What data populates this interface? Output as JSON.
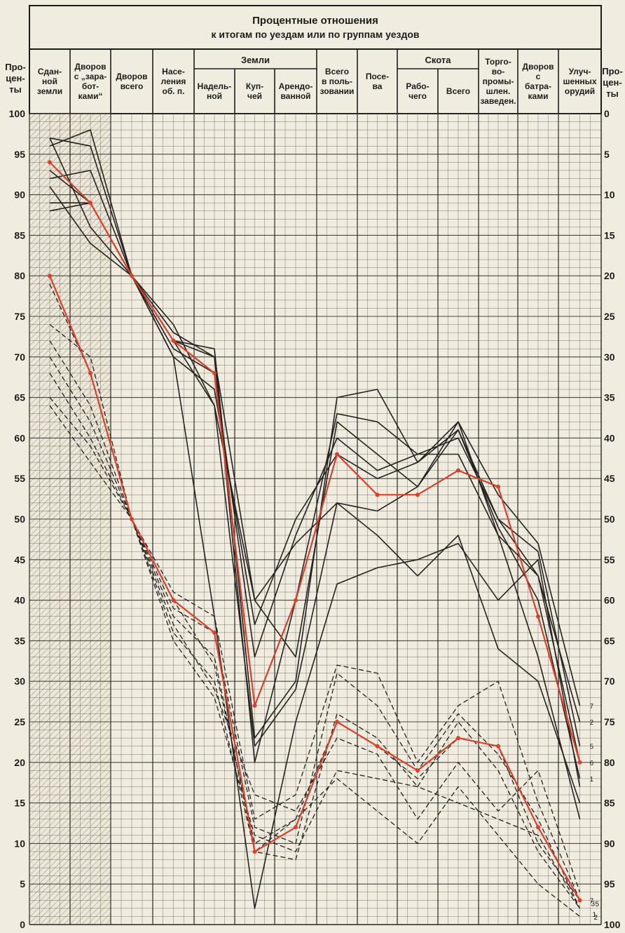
{
  "chart_data": {
    "type": "line",
    "title_line1": "Процентные отношения",
    "title_line2": "к итогам по уездам или по группам уездов",
    "left_axis_label": [
      "Про-",
      "цен-",
      "ты"
    ],
    "right_axis_label": [
      "Про-",
      "цен-",
      "ты"
    ],
    "left_ticks": [
      100,
      95,
      90,
      85,
      80,
      75,
      70,
      65,
      60,
      55,
      50,
      45,
      40,
      35,
      30,
      25,
      20,
      15,
      10,
      5,
      0
    ],
    "right_ticks": [
      0,
      5,
      10,
      15,
      20,
      25,
      30,
      35,
      40,
      45,
      50,
      55,
      60,
      65,
      70,
      75,
      80,
      85,
      90,
      95,
      100
    ],
    "ylim": [
      0,
      100
    ],
    "group_headers": [
      {
        "label": "Земли"
      },
      {
        "label": "Скота"
      }
    ],
    "categories": [
      "Сданной земли",
      "Дворов с \"заработками\"",
      "Дворов всего",
      "Населения об. п.",
      "Надельной",
      "Купчей",
      "Арендованной",
      "Всего в пользовании",
      "Посева",
      "Рабочего",
      "Всего",
      "Торгово-промышлен. заведен.",
      "Дворов с батраками",
      "Улучшенных орудий"
    ],
    "column_labels": [
      [
        "Сдан-",
        "ной",
        "земли"
      ],
      [
        "Дворов",
        "с „зара-",
        "бот-",
        "ками“"
      ],
      [
        "Дворов",
        "всего"
      ],
      [
        "Насе-",
        "ления",
        "об. п."
      ],
      [
        "Надель-",
        "ной"
      ],
      [
        "Куп-",
        "чей"
      ],
      [
        "Арендо-",
        "ванной"
      ],
      [
        "Всего",
        "в поль-",
        "зовании"
      ],
      [
        "Посе-",
        "ва"
      ],
      [
        "Рабо-",
        "чего"
      ],
      [
        "Всего"
      ],
      [
        "Торго-",
        "во-",
        "промы-",
        "шлен.",
        "заведен."
      ],
      [
        "Дворов",
        "с",
        "батра-",
        "ками"
      ],
      [
        "Улуч-",
        "шенных",
        "орудий"
      ]
    ],
    "series_solid": [
      {
        "values": [
          96,
          98,
          80,
          72,
          71,
          23,
          30,
          65,
          66,
          57,
          62,
          53,
          47,
          27
        ]
      },
      {
        "values": [
          97,
          96,
          80,
          72,
          70,
          20,
          40,
          63,
          62,
          58,
          60,
          50,
          43,
          25
        ]
      },
      {
        "values": [
          93,
          89,
          80,
          73,
          70,
          40,
          33,
          62,
          58,
          54,
          61,
          50,
          46,
          22
        ]
      },
      {
        "values": [
          92,
          93,
          80,
          71,
          68,
          33,
          48,
          60,
          56,
          58,
          58,
          48,
          43,
          20
        ]
      },
      {
        "values": [
          89,
          89,
          80,
          70,
          66,
          37,
          50,
          58,
          55,
          57,
          61,
          49,
          40,
          18
        ]
      },
      {
        "values": [
          91,
          84,
          80,
          72,
          64,
          40,
          47,
          52,
          51,
          54,
          62,
          48,
          33,
          13
        ]
      },
      {
        "values": [
          97,
          86,
          80,
          74,
          64,
          22,
          29,
          52,
          48,
          43,
          48,
          34,
          30,
          15
        ]
      },
      {
        "values": [
          88,
          89,
          80,
          70,
          38,
          2,
          25,
          42,
          44,
          45,
          47,
          40,
          45,
          17
        ]
      }
    ],
    "series_highlight_upper": {
      "color": "#d8402a",
      "values": [
        94,
        89,
        80,
        72,
        68,
        27,
        40,
        58,
        53,
        53,
        56,
        54,
        38,
        20
      ]
    },
    "series_dashed": [
      {
        "values": [
          79,
          68,
          50,
          40,
          32,
          10,
          13,
          25,
          22,
          18,
          23,
          22,
          10,
          3
        ]
      },
      {
        "values": [
          74,
          70,
          50,
          41,
          38,
          13,
          16,
          32,
          31,
          20,
          27,
          30,
          15,
          3
        ]
      },
      {
        "values": [
          72,
          64,
          50,
          39,
          36,
          12,
          10,
          31,
          27,
          19,
          26,
          21,
          13,
          2
        ]
      },
      {
        "values": [
          70,
          62,
          50,
          38,
          33,
          9,
          8,
          26,
          23,
          17,
          25,
          19,
          9,
          2
        ]
      },
      {
        "values": [
          68,
          60,
          50,
          37,
          29,
          16,
          14,
          23,
          21,
          13,
          20,
          14,
          19,
          4
        ]
      },
      {
        "values": [
          65,
          59,
          50,
          35,
          28,
          11,
          9,
          19,
          18,
          17,
          15,
          13,
          11,
          2
        ]
      },
      {
        "values": [
          64,
          57,
          50,
          36,
          30,
          9,
          13,
          18,
          14,
          10,
          17,
          11,
          5,
          1
        ]
      }
    ],
    "series_highlight_lower": {
      "color": "#d8402a",
      "values": [
        80,
        68,
        50,
        40,
        36,
        9,
        12,
        25,
        22,
        19,
        23,
        22,
        12,
        3
      ]
    },
    "marks_right_upper": [
      "7",
      "2",
      "5",
      "6",
      "1"
    ],
    "marks_right_lower": [
      "7",
      "3",
      "1",
      "2",
      "5"
    ],
    "shaded_first_column": true,
    "grid": true,
    "accent_color": "#d8402a",
    "paper_color": "#f1ece0",
    "ink_color": "#1e1c1a"
  }
}
